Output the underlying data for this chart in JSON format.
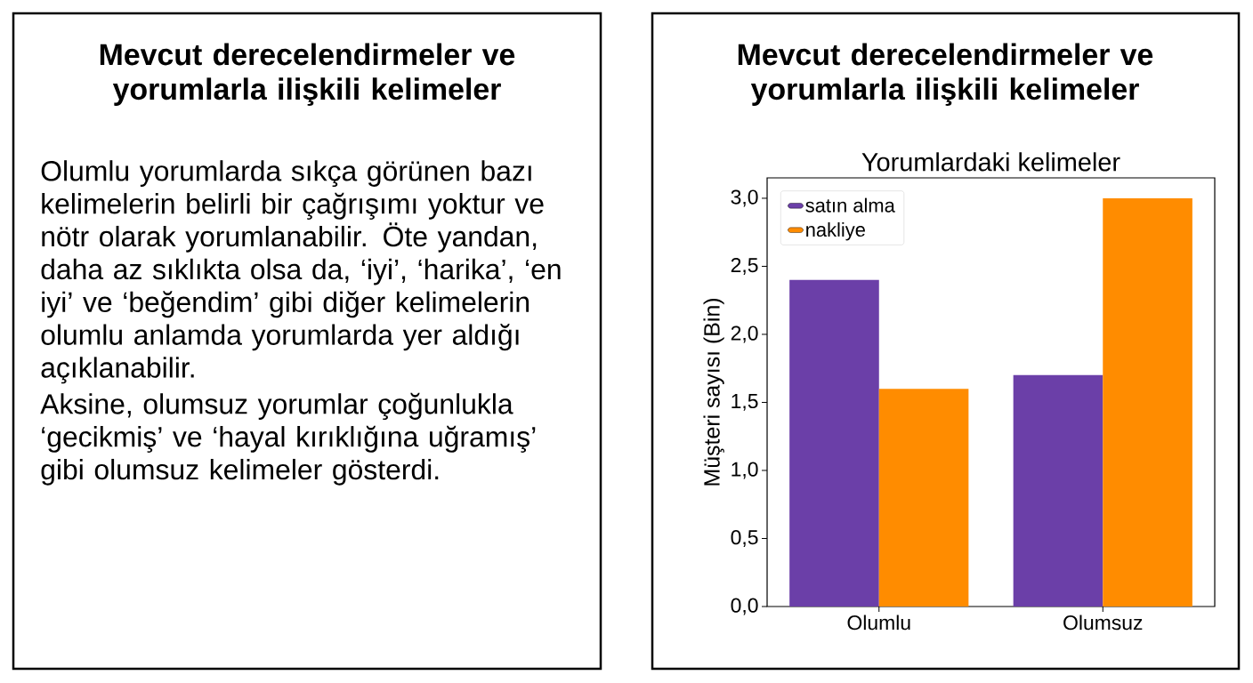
{
  "chart_data": [
    {
      "type": "other",
      "title": "Mevcut derecelendirmeler ve yorumlarla ilişkili kelimeler",
      "annotations": [
        "Olumlu yorumlarda sıkça görünen bazı kelimelerin belirli bir çağrışımı yoktur ve nötr olarak yorumlanabilir. Öte yandan, daha az sıklıkta olsa da, ‘iyi’, ‘harika’, ‘en iyi’ ve ‘beğendim’ gibi diğer kelimelerin olumlu anlamda yorumlarda yer aldığı açıklanabilir.",
        "Aksine, olumsuz yorumlar çoğunlukla ‘gecikmiş’ ve ‘hayal kırıklığına uğramış’ gibi olumsuz kelimeler gösterdi."
      ]
    },
    {
      "type": "bar",
      "title": "Mevcut derecelendirmeler ve yorumlarla ilişkili kelimeler",
      "subtitle": "Yorumlardaki kelimeler",
      "ylabel": "Müşteri sayısı (Bin)",
      "categories": [
        "Olumlu",
        "Olumsuz"
      ],
      "series": [
        {
          "name": "satın alma",
          "color": "#6b3fa8",
          "values": [
            2.4,
            1.7
          ]
        },
        {
          "name": "nakliye",
          "color": "#ff8c00",
          "values": [
            1.6,
            3.0
          ]
        }
      ],
      "ylim": [
        0,
        3.15
      ],
      "yticks": [
        {
          "value": 0,
          "label": "0,0"
        },
        {
          "value": 0.5,
          "label": "0,5"
        },
        {
          "value": 1,
          "label": "1,0"
        },
        {
          "value": 1.5,
          "label": "1,5"
        },
        {
          "value": 2,
          "label": "2,0"
        },
        {
          "value": 2.5,
          "label": "2,5"
        },
        {
          "value": 3,
          "label": "3,0"
        }
      ],
      "legend": "top left",
      "grid": false
    }
  ]
}
